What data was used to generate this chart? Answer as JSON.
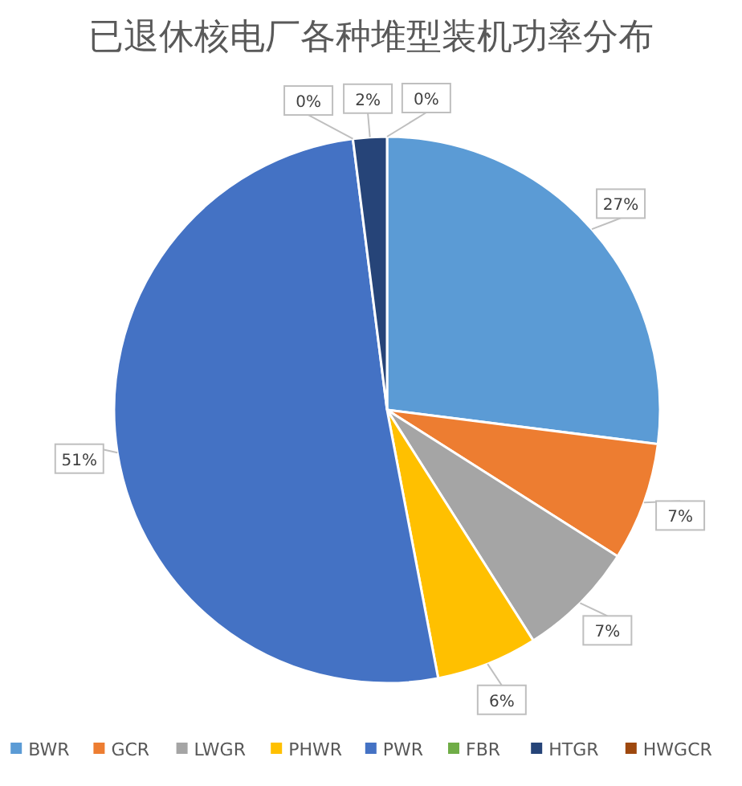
{
  "chart_data": {
    "type": "pie",
    "title": "已退休核电厂各种堆型装机功率分布",
    "categories": [
      "BWR",
      "GCR",
      "LWGR",
      "PHWR",
      "PWR",
      "FBR",
      "HTGR",
      "HWGCR"
    ],
    "values": [
      27,
      7,
      7,
      6,
      51,
      0,
      2,
      0
    ],
    "value_labels": [
      "27%",
      "7%",
      "7%",
      "6%",
      "51%",
      "0%",
      "2%",
      "0%"
    ],
    "colors": [
      "#5b9bd5",
      "#ed7d31",
      "#a5a5a5",
      "#ffc000",
      "#4472c4",
      "#70ad47",
      "#264478",
      "#9e480e"
    ],
    "legend": "bottom"
  }
}
